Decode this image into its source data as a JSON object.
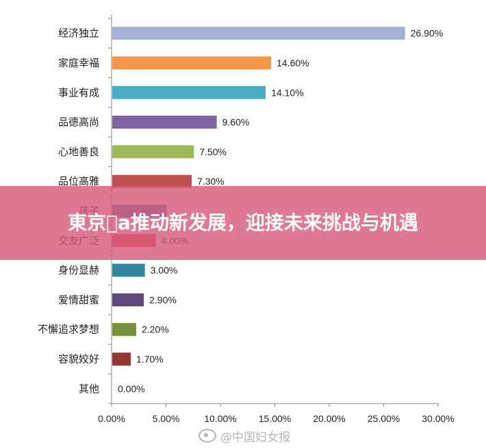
{
  "chart_data": {
    "type": "bar",
    "orientation": "horizontal",
    "categories": [
      "经济独立",
      "家庭幸福",
      "事业有成",
      "品德高尚",
      "心地善良",
      "品位高雅",
      "孩子",
      "交友广泛",
      "身份显赫",
      "爱情甜蜜",
      "不懈追求梦想",
      "容貌姣好",
      "其他"
    ],
    "values": [
      26.9,
      14.6,
      14.1,
      9.6,
      7.5,
      7.3,
      5.0,
      4.0,
      3.0,
      2.9,
      2.2,
      1.7,
      0.0
    ],
    "value_labels": [
      "26.90%",
      "14.60%",
      "14.10%",
      "9.60%",
      "7.50%",
      "7.30%",
      "",
      "4.00%",
      "3.00%",
      "2.90%",
      "2.20%",
      "1.70%",
      "0.00%"
    ],
    "colors": [
      "#a3b1d6",
      "#f79646",
      "#4bacc6",
      "#8064a2",
      "#9bbb59",
      "#c0504d",
      "#4f81bd",
      "#d04a4a",
      "#31859c",
      "#60497a",
      "#76923c",
      "#943634",
      "#1f497d"
    ],
    "xlim": [
      0,
      30
    ],
    "x_ticks": [
      "0.00%",
      "5.00%",
      "10.00%",
      "15.00%",
      "20.00%",
      "25.00%",
      "30.00%"
    ],
    "grid": false,
    "legend": "none"
  },
  "banner": {
    "title": "東京a推动新发展，迎接未来挑战与机遇"
  },
  "watermark": {
    "text": "@中国妇女报",
    "icon": "weibo-icon"
  }
}
